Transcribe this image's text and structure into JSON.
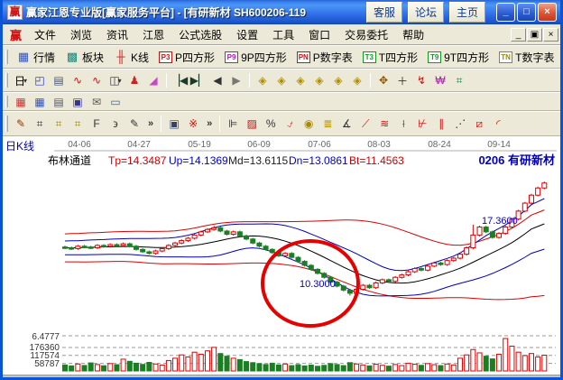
{
  "window": {
    "logo_char": "赢",
    "title": "赢家江恩专业版[赢家服务平台] - [有研新材  SH600206-119",
    "titlebar_buttons": [
      "客服",
      "论坛",
      "主页"
    ],
    "controls": [
      {
        "name": "minimize-button",
        "glyph": "_"
      },
      {
        "name": "maximize-button",
        "glyph": "□"
      },
      {
        "name": "close-button",
        "glyph": "×"
      }
    ]
  },
  "menubar": {
    "logo_char": "赢",
    "items": [
      "文件",
      "浏览",
      "资讯",
      "江恩",
      "公式选股",
      "设置",
      "工具",
      "窗口",
      "交易委托",
      "帮助"
    ],
    "mdi_controls": [
      {
        "name": "mdi-minimize-button",
        "glyph": "_"
      },
      {
        "name": "mdi-restore-button",
        "glyph": "▣"
      },
      {
        "name": "mdi-close-button",
        "glyph": "×"
      }
    ]
  },
  "toolbar_main": {
    "overflow": "»",
    "items": [
      {
        "name": "quotes-button",
        "label": "行情",
        "glyph": "▦",
        "color": "#3355bb"
      },
      {
        "name": "sectors-button",
        "label": "板块",
        "glyph": "▩",
        "color": "#138a7a"
      },
      {
        "name": "kline-button",
        "label": "K线",
        "glyph": "╫",
        "color": "#cc2222"
      },
      {
        "name": "p-square-button",
        "label": "P四方形",
        "badge": "P3",
        "color": "#cc1111"
      },
      {
        "name": "p9-square-button",
        "label": "9P四方形",
        "badge": "P9",
        "color": "#bb11bb"
      },
      {
        "name": "p-table-button",
        "label": "P数字表",
        "badge": "PN",
        "color": "#cc1111"
      },
      {
        "name": "t-square-button",
        "label": "T四方形",
        "badge": "T3",
        "color": "#119922"
      },
      {
        "name": "t9-square-button",
        "label": "9T四方形",
        "badge": "T9",
        "color": "#119922"
      },
      {
        "name": "t-table-button",
        "label": "T数字表",
        "badge": "TN",
        "color": "#998800"
      }
    ]
  },
  "toolbar_chart": {
    "groups": [
      [
        {
          "name": "period-day-dropdown",
          "glyph": "日",
          "color": "#000000",
          "dropdown": true
        },
        {
          "name": "zigzag-window-icon",
          "glyph": "◰",
          "color": "#2233cc"
        },
        {
          "name": "note-list-icon",
          "glyph": "▤",
          "color": "#445577"
        },
        {
          "name": "wave3-icon",
          "glyph": "∿",
          "color": "#cc1111"
        },
        {
          "name": "wave9-icon",
          "glyph": "∿",
          "color": "#cc1111"
        },
        {
          "name": "candle-style-dropdown",
          "glyph": "◫",
          "color": "#333333",
          "dropdown": true
        },
        {
          "name": "gann-figure-icon",
          "glyph": "♟",
          "color": "#cc2222"
        },
        {
          "name": "volume-profile-icon",
          "glyph": "◢",
          "color": "#cc44cc"
        }
      ],
      [
        {
          "name": "nav-first-icon",
          "glyph": "▕◀",
          "color": "#1a3a2a"
        },
        {
          "name": "nav-last-icon",
          "glyph": "▶▏",
          "color": "#1a3a2a"
        },
        {
          "name": "nav-prev-icon",
          "glyph": "◀",
          "color": "#333333"
        },
        {
          "name": "nav-next-icon",
          "glyph": "▶",
          "color": "#777777"
        }
      ],
      [
        {
          "name": "zoom-h-compress-icon",
          "glyph": "◈",
          "color": "#b09000"
        },
        {
          "name": "zoom-h-expand-icon",
          "glyph": "◈",
          "color": "#b09000"
        },
        {
          "name": "zoom-v-compress-icon",
          "glyph": "◈",
          "color": "#b09000"
        },
        {
          "name": "zoom-v-expand-icon",
          "glyph": "◈",
          "color": "#b09000"
        },
        {
          "name": "zoom-all-compress-icon",
          "glyph": "◈",
          "color": "#b09000"
        },
        {
          "name": "zoom-all-expand-icon",
          "glyph": "◈",
          "color": "#b09000"
        }
      ],
      [
        {
          "name": "hand-tool-icon",
          "glyph": "✥",
          "color": "#885500"
        },
        {
          "name": "crosshair-tool-icon",
          "glyph": "＋",
          "color": "#333333"
        },
        {
          "name": "angle-measure-icon",
          "glyph": "↯",
          "color": "#cc1111"
        },
        {
          "name": "gann-box-tool-icon",
          "glyph": "₩",
          "color": "#bb11bb"
        },
        {
          "name": "neural-tool-icon",
          "glyph": "⌗",
          "color": "#11885a"
        }
      ]
    ]
  },
  "toolbar_system": {
    "items": [
      {
        "name": "calendar-icon",
        "glyph": "▦",
        "color": "#cc3333"
      },
      {
        "name": "calculator-icon",
        "glyph": "▦",
        "color": "#3355bb"
      },
      {
        "name": "notepad-icon",
        "glyph": "▤",
        "color": "#556"
      },
      {
        "name": "save-icon",
        "glyph": "▣",
        "color": "#333399"
      },
      {
        "name": "mail-icon",
        "glyph": "✉",
        "color": "#555555"
      },
      {
        "name": "remote-icon",
        "glyph": "▭",
        "color": "#446688"
      }
    ]
  },
  "toolbar_draw": {
    "overflow": "»",
    "group_pen": [
      {
        "name": "brush-tool-icon",
        "glyph": "✎",
        "color": "#993300"
      },
      {
        "name": "grid-lines-icon",
        "glyph": "⌗",
        "color": "#333333"
      },
      {
        "name": "gold-grid-icon",
        "glyph": "⌗",
        "color": "#aa8800"
      },
      {
        "name": "gold-grid2-icon",
        "glyph": "⌗",
        "color": "#aa8800"
      },
      {
        "name": "f-grid-icon",
        "glyph": "F",
        "color": "#333333"
      },
      {
        "name": "spiral-grid-icon",
        "glyph": "϶",
        "color": "#333333"
      },
      {
        "name": "brush-grid-icon",
        "glyph": "✎",
        "color": "#333333"
      }
    ],
    "group_shape": [
      {
        "name": "box-tool-icon",
        "glyph": "▣",
        "color": "#334466"
      },
      {
        "name": "rays-tool-icon",
        "glyph": "※",
        "color": "#cc1111"
      }
    ],
    "group_analysis": [
      {
        "name": "price-measure-icon",
        "glyph": "⊫",
        "color": "#333333"
      },
      {
        "name": "percent-box-icon",
        "glyph": "▨",
        "color": "#cc1111"
      },
      {
        "name": "percent-icon",
        "glyph": "%",
        "color": "#333333"
      },
      {
        "name": "percent-line-icon",
        "glyph": "⍻",
        "color": "#cc1111"
      },
      {
        "name": "gold-circle-icon",
        "glyph": "◉",
        "color": "#aa8800"
      },
      {
        "name": "gold-line-icon",
        "glyph": "≣",
        "color": "#aa8800"
      },
      {
        "name": "angle-line-icon",
        "glyph": "∡",
        "color": "#333333"
      },
      {
        "name": "support-line-icon",
        "glyph": "⟋",
        "color": "#cc1111"
      },
      {
        "name": "gold-band-icon",
        "glyph": "≋",
        "color": "#cc1111"
      },
      {
        "name": "gann-j-icon",
        "glyph": "⟊",
        "color": "#333333"
      },
      {
        "name": "gann-f-icon",
        "glyph": "⊬",
        "color": "#cc1111"
      },
      {
        "name": "channel-icon",
        "glyph": "∥",
        "color": "#cc1111"
      },
      {
        "name": "regression-icon",
        "glyph": "⋰",
        "color": "#333333"
      },
      {
        "name": "fan-icon",
        "glyph": "⧄",
        "color": "#cc1111"
      },
      {
        "name": "arc-icon",
        "glyph": "◜",
        "color": "#cc1111"
      }
    ]
  },
  "chart": {
    "period_label": "日K线",
    "dates": [
      "04-06",
      "04-27",
      "05-19",
      "06-09",
      "07-06",
      "08-03",
      "08-24",
      "09-14"
    ],
    "indicator_name": "布林通道",
    "indicator_items": [
      {
        "label": "Tp=14.3487",
        "color": "#cc0000"
      },
      {
        "label": "Up=14.1369",
        "color": "#0000cc"
      },
      {
        "label": "Md=13.6115",
        "color": "#222222"
      },
      {
        "label": "Dn=13.0861",
        "color": "#0000cc"
      },
      {
        "label": "Bt=11.4563",
        "color": "#cc0000"
      }
    ],
    "stock_label": "0206 有研新材",
    "price_axis_min": "6.4777",
    "volume_ticks": [
      "176360",
      "117574",
      "58787"
    ],
    "last_price_label": "17.3600",
    "circled_low_label": "10.3000"
  },
  "chart_data": {
    "type": "candlestick",
    "title": "有研新材 SH600206 日K线 布林通道(Bollinger Channel)",
    "x_tick_labels": [
      "04-06",
      "04-27",
      "05-19",
      "06-09",
      "07-06",
      "08-03",
      "08-24",
      "09-14"
    ],
    "indicator_values": {
      "Tp": 14.3487,
      "Up": 14.1369,
      "Md": 13.6115,
      "Dn": 13.0861,
      "Bt": 11.4563
    },
    "price_axis_min": 6.4777,
    "last_price": 17.36,
    "circled_low": 10.3,
    "volume_tick_values": [
      176360,
      117574,
      58787
    ],
    "up_color": "#dd0000",
    "down_color": "#1b7e23",
    "band_inner_color": "#0000bb",
    "band_outer_color": "#dd0000",
    "mid_color": "#000000",
    "annotation_circle_color": "#e60000",
    "candles_ohlc": [
      [
        13.35,
        13.43,
        13.22,
        13.3
      ],
      [
        13.3,
        13.38,
        13.17,
        13.25
      ],
      [
        13.25,
        13.48,
        13.17,
        13.4
      ],
      [
        13.4,
        13.48,
        13.27,
        13.35
      ],
      [
        13.35,
        13.43,
        13.22,
        13.3
      ],
      [
        13.3,
        13.53,
        13.22,
        13.45
      ],
      [
        13.45,
        13.53,
        13.32,
        13.4
      ],
      [
        13.4,
        13.58,
        13.32,
        13.5
      ],
      [
        13.5,
        13.58,
        13.37,
        13.45
      ],
      [
        13.45,
        13.63,
        13.37,
        13.55
      ],
      [
        13.55,
        13.63,
        13.32,
        13.4
      ],
      [
        13.4,
        13.48,
        13.12,
        13.2
      ],
      [
        13.2,
        13.28,
        12.97,
        13.05
      ],
      [
        13.05,
        13.13,
        12.87,
        12.95
      ],
      [
        12.95,
        13.18,
        12.87,
        13.1
      ],
      [
        13.1,
        13.33,
        13.02,
        13.25
      ],
      [
        13.25,
        13.53,
        13.17,
        13.45
      ],
      [
        13.45,
        13.68,
        13.37,
        13.6
      ],
      [
        13.6,
        13.83,
        13.52,
        13.75
      ],
      [
        13.75,
        13.98,
        13.67,
        13.9
      ],
      [
        13.9,
        14.18,
        13.82,
        14.1
      ],
      [
        14.1,
        14.38,
        14.02,
        14.3
      ],
      [
        14.3,
        14.53,
        14.22,
        14.45
      ],
      [
        14.45,
        14.68,
        14.37,
        14.55
      ],
      [
        14.55,
        14.63,
        14.27,
        14.35
      ],
      [
        14.35,
        14.43,
        14.07,
        14.15
      ],
      [
        14.15,
        14.38,
        14.07,
        14.3
      ],
      [
        14.3,
        14.38,
        13.97,
        14.05
      ],
      [
        14.05,
        14.13,
        13.77,
        13.85
      ],
      [
        13.85,
        13.93,
        13.52,
        13.6
      ],
      [
        13.6,
        13.68,
        13.32,
        13.4
      ],
      [
        13.4,
        13.48,
        13.12,
        13.2
      ],
      [
        13.2,
        13.28,
        12.92,
        13.0
      ],
      [
        13.0,
        13.08,
        12.72,
        12.8
      ],
      [
        12.8,
        13.03,
        12.72,
        12.95
      ],
      [
        12.95,
        13.03,
        12.62,
        12.7
      ],
      [
        12.7,
        12.78,
        12.37,
        12.45
      ],
      [
        12.45,
        12.53,
        12.12,
        12.2
      ],
      [
        12.2,
        12.28,
        11.87,
        11.95
      ],
      [
        11.95,
        12.03,
        11.62,
        11.7
      ],
      [
        11.7,
        11.78,
        11.37,
        11.45
      ],
      [
        11.45,
        11.53,
        11.07,
        11.15
      ],
      [
        11.15,
        11.23,
        10.82,
        10.9
      ],
      [
        10.9,
        10.98,
        10.57,
        10.65
      ],
      [
        10.65,
        10.73,
        10.3,
        10.45
      ],
      [
        10.45,
        10.78,
        10.37,
        10.7
      ],
      [
        10.7,
        11.03,
        10.62,
        10.95
      ],
      [
        10.95,
        11.03,
        10.72,
        10.8
      ],
      [
        10.8,
        11.18,
        10.72,
        11.1
      ],
      [
        11.1,
        11.38,
        11.02,
        11.3
      ],
      [
        11.3,
        11.38,
        11.12,
        11.2
      ],
      [
        11.2,
        11.53,
        11.12,
        11.45
      ],
      [
        11.45,
        11.68,
        11.37,
        11.6
      ],
      [
        11.6,
        11.88,
        11.52,
        11.8
      ],
      [
        11.8,
        12.08,
        11.72,
        12.0
      ],
      [
        12.0,
        12.08,
        11.82,
        11.9
      ],
      [
        11.9,
        12.23,
        11.82,
        12.15
      ],
      [
        12.15,
        12.43,
        12.07,
        12.35
      ],
      [
        12.35,
        12.43,
        12.17,
        12.25
      ],
      [
        12.25,
        12.58,
        12.17,
        12.5
      ],
      [
        12.5,
        12.73,
        12.42,
        12.65
      ],
      [
        12.65,
        12.98,
        12.57,
        12.9
      ],
      [
        12.9,
        13.38,
        12.82,
        13.3
      ],
      [
        13.3,
        14.75,
        13.2,
        14.1
      ],
      [
        14.1,
        14.68,
        14.02,
        14.6
      ],
      [
        14.6,
        14.68,
        14.22,
        14.3
      ],
      [
        14.3,
        14.38,
        13.87,
        13.95
      ],
      [
        13.95,
        14.28,
        13.87,
        14.2
      ],
      [
        14.2,
        14.68,
        14.12,
        14.6
      ],
      [
        14.6,
        15.18,
        14.52,
        15.1
      ],
      [
        15.1,
        15.68,
        15.02,
        15.6
      ],
      [
        15.6,
        16.18,
        15.52,
        16.1
      ],
      [
        16.1,
        16.68,
        16.02,
        16.6
      ],
      [
        16.6,
        17.13,
        16.52,
        17.05
      ],
      [
        17.05,
        17.45,
        16.97,
        17.36
      ]
    ],
    "volumes": [
      45000,
      38000,
      52000,
      41000,
      60000,
      48000,
      39000,
      55000,
      47000,
      88000,
      72000,
      58000,
      49000,
      64000,
      52000,
      44000,
      78000,
      95000,
      120000,
      105000,
      140000,
      125000,
      150000,
      176000,
      130000,
      110000,
      95000,
      85000,
      70000,
      62000,
      55000,
      48000,
      58000,
      45000,
      52000,
      40000,
      47000,
      38000,
      44000,
      35000,
      42000,
      55000,
      48000,
      40000,
      62000,
      52000,
      45000,
      38000,
      50000,
      42000,
      36000,
      48000,
      40000,
      58000,
      50000,
      42000,
      55000,
      47000,
      40000,
      52000,
      45000,
      95000,
      120000,
      160000,
      135000,
      110000,
      90000,
      125000,
      242000,
      185000,
      140000,
      115000,
      130000,
      105000,
      118000
    ]
  }
}
